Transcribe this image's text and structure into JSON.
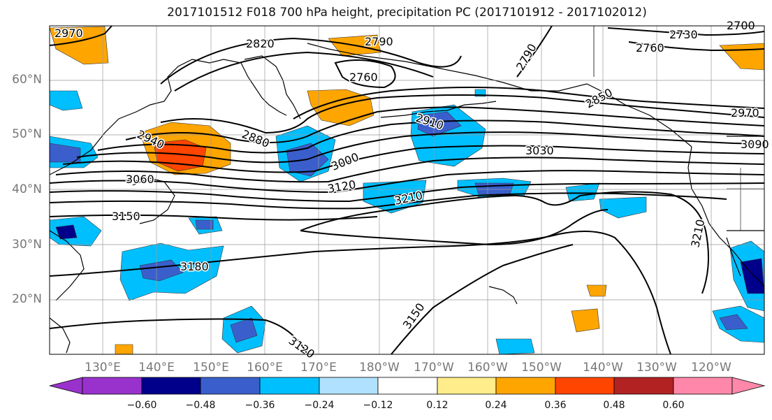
{
  "title": "2017101512 F018 700 hPa height, precipitation PC (2017101912 - 2017102012)",
  "lat_labels": [
    "60°N",
    "50°N",
    "40°N",
    "30°N",
    "20°N"
  ],
  "lon_labels": [
    "130°E",
    "140°E",
    "150°E",
    "160°E",
    "170°E",
    "180°W",
    "170°W",
    "160°W",
    "150°W",
    "140°W",
    "130°W",
    "120°W"
  ],
  "contour_labels": [
    "2970",
    "2820",
    "2790",
    "2730",
    "2700",
    "2760",
    "2760",
    "2790",
    "2850",
    "2970",
    "3090",
    "2910",
    "3030",
    "2940",
    "2880",
    "3000",
    "3060",
    "3120",
    "3210",
    "3150",
    "3180",
    "3210",
    "3150",
    "3120"
  ],
  "colorbar": {
    "ticks": [
      "−0.60",
      "−0.48",
      "−0.36",
      "−0.24",
      "−0.12",
      "0.12",
      "0.24",
      "0.36",
      "0.48",
      "0.60"
    ],
    "colors": [
      "#9932CC",
      "#00008B",
      "#3A5FCD",
      "#00BFFF",
      "#B0E2FF",
      "#FFFFFF",
      "#FFEC8B",
      "#FFA500",
      "#FF4500",
      "#B22222",
      "#FF88AA"
    ]
  },
  "colors": {
    "pos": "#FFA500",
    "neg_light": "#00BFFF",
    "neg_mid": "#3A5FCD",
    "neg_dark": "#00008B",
    "pos_strong": "#FF4500"
  }
}
